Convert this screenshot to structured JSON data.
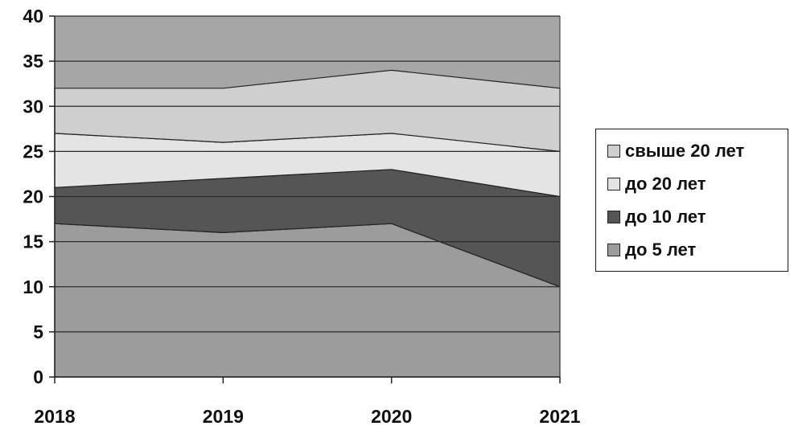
{
  "chart_data": {
    "type": "area",
    "stacked": true,
    "x": [
      "2018",
      "2019",
      "2020",
      "2021"
    ],
    "ylim": [
      0,
      40
    ],
    "yticks": [
      0,
      5,
      10,
      15,
      20,
      25,
      30,
      35,
      40
    ],
    "grid": "y-major",
    "series": [
      {
        "name": "до 5 лет",
        "values": [
          17,
          16,
          17,
          10
        ],
        "color": "#9c9c9c"
      },
      {
        "name": "до 10 лет",
        "values": [
          4,
          6,
          6,
          10
        ],
        "color": "#555555"
      },
      {
        "name": "до 20 лет",
        "values": [
          6,
          4,
          4,
          5
        ],
        "color": "#e4e4e4"
      },
      {
        "name": "свыше 20 лет",
        "values": [
          5,
          6,
          7,
          7
        ],
        "color": "#cfcfcf"
      }
    ],
    "plot_background": "#a6a6a6",
    "legend_position": "right",
    "legend_order": [
      "свыше 20 лет",
      "до 20 лет",
      "до 10 лет",
      "до 5 лет"
    ]
  }
}
